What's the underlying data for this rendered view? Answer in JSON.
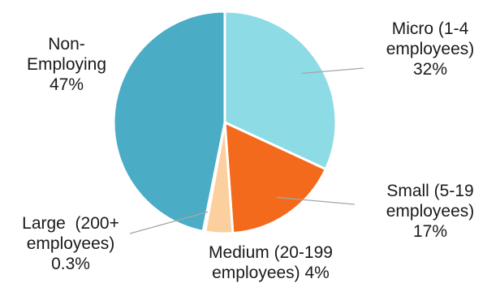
{
  "chart_data": {
    "type": "pie",
    "slices": [
      {
        "key": "micro",
        "label": "Micro (1-4 employees)",
        "label_lines": [
          "Micro (1-4",
          "employees)",
          "32%"
        ],
        "value": 32,
        "color": "#8ddbe4"
      },
      {
        "key": "small",
        "label": "Small (5-19 employees)",
        "label_lines": [
          "Small (5-19",
          "employees)",
          "17%"
        ],
        "value": 17,
        "color": "#f36a1d"
      },
      {
        "key": "medium",
        "label": "Medium (20-199 employees)",
        "label_lines": [
          "Medium (20-199",
          "employees) 4%"
        ],
        "value": 4,
        "color": "#fbcf9e"
      },
      {
        "key": "large",
        "label": "Large (200+ employees)",
        "label_lines": [
          "Large  (200+",
          "employees)",
          "0.3%"
        ],
        "value": 0.3,
        "color": "#2d88a8"
      },
      {
        "key": "non-employing",
        "label": "Non-Employing",
        "label_lines": [
          "Non-",
          "Employing",
          "47%"
        ],
        "value": 47,
        "color": "#4bacc6"
      }
    ],
    "start_angle_deg": 0,
    "direction": "clockwise",
    "slice_border": "#ffffff",
    "legend": "none",
    "leader_line_color": "#a6a6a6"
  }
}
